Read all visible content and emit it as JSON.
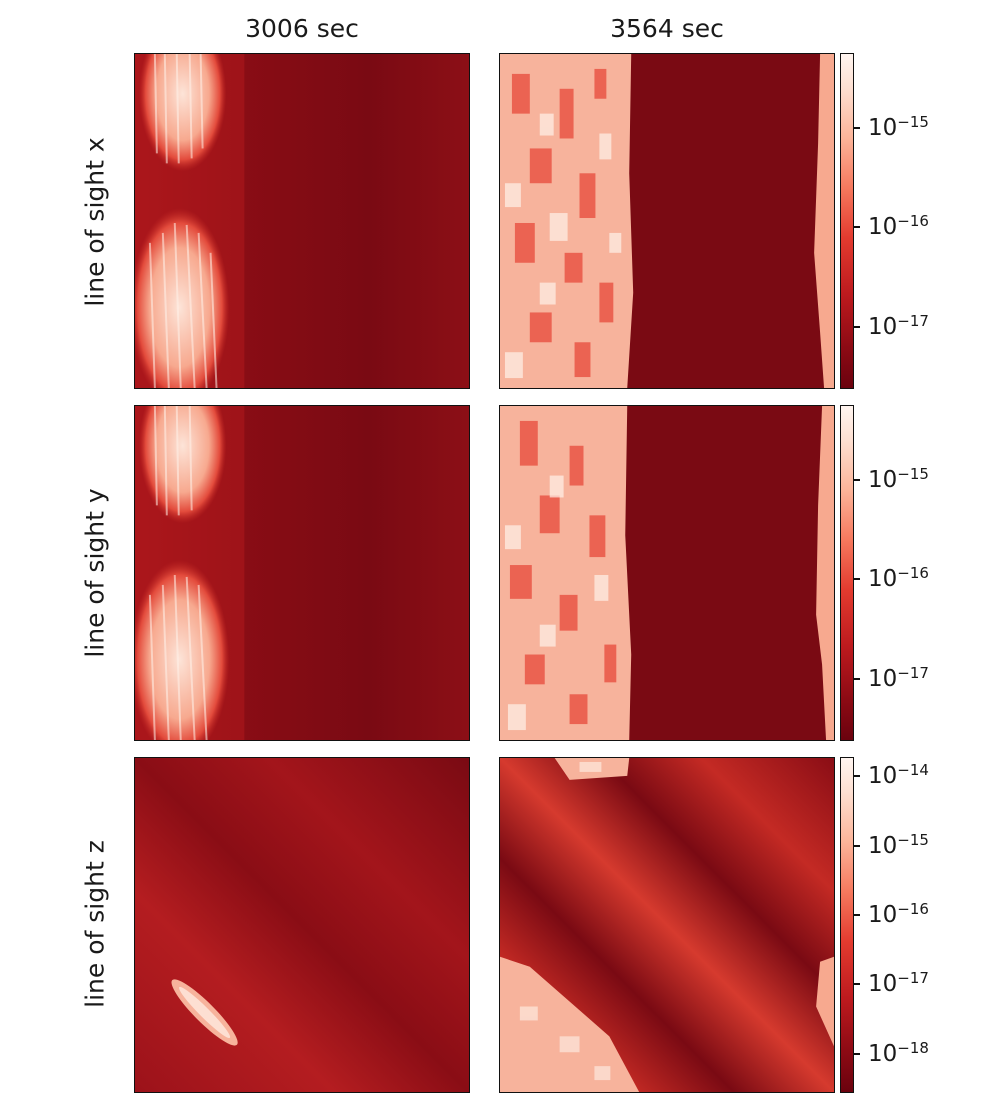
{
  "chart_data": {
    "type": "heatmap",
    "colormap": "Reds",
    "scale": "log",
    "columns": [
      "3006 sec",
      "3564 sec"
    ],
    "rows": [
      "line of sight x",
      "line of sight y",
      "line of sight z"
    ],
    "colorbars": [
      {
        "row": "line of sight x",
        "ticks": [
          {
            "base": "10",
            "exp": "−15"
          },
          {
            "base": "10",
            "exp": "−16"
          },
          {
            "base": "10",
            "exp": "−17"
          }
        ]
      },
      {
        "row": "line of sight y",
        "ticks": [
          {
            "base": "10",
            "exp": "−15"
          },
          {
            "base": "10",
            "exp": "−16"
          },
          {
            "base": "10",
            "exp": "−17"
          }
        ]
      },
      {
        "row": "line of sight z",
        "ticks": [
          {
            "base": "10",
            "exp": "−14"
          },
          {
            "base": "10",
            "exp": "−15"
          },
          {
            "base": "10",
            "exp": "−16"
          },
          {
            "base": "10",
            "exp": "−17"
          },
          {
            "base": "10",
            "exp": "−18"
          }
        ]
      }
    ],
    "colors": {
      "low": "#6b020e",
      "mid": "#e33b2f",
      "high": "#fff5f0",
      "border": "#111111"
    }
  }
}
